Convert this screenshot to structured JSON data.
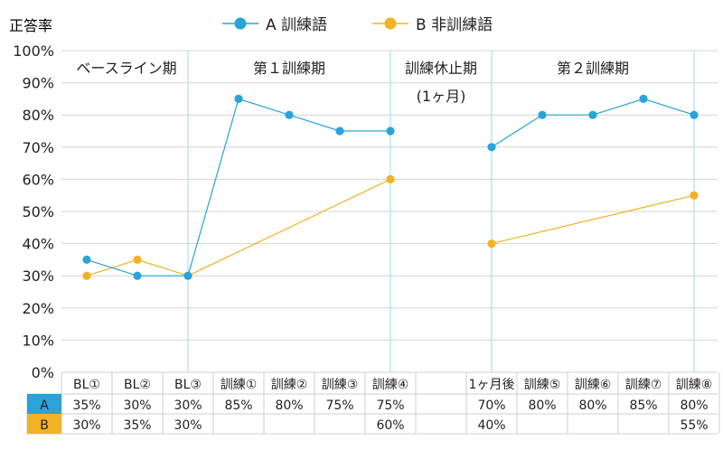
{
  "chart_data": {
    "type": "line",
    "ylabel": "正答率",
    "ylim": [
      0,
      100
    ],
    "yticks": [
      "0%",
      "10%",
      "20%",
      "30%",
      "40%",
      "50%",
      "60%",
      "70%",
      "80%",
      "90%",
      "100%"
    ],
    "categories": [
      "BL①",
      "BL②",
      "BL③",
      "訓練①",
      "訓練②",
      "訓練③",
      "訓練④",
      "",
      "1ヶ月後",
      "訓練⑤",
      "訓練⑥",
      "訓練⑦",
      "訓練⑧"
    ],
    "phases": [
      {
        "label": "ベースライン期",
        "sub": ""
      },
      {
        "label": "第１訓練期",
        "sub": ""
      },
      {
        "label": "訓練休止期",
        "sub": "(1ヶ月)"
      },
      {
        "label": "第２訓練期",
        "sub": ""
      }
    ],
    "series": [
      {
        "name": "A 訓練語",
        "key": "A",
        "color": "#29a3d9",
        "values": [
          35,
          30,
          30,
          85,
          80,
          75,
          75,
          null,
          70,
          80,
          80,
          85,
          80
        ],
        "labels": [
          "35%",
          "30%",
          "30%",
          "85%",
          "80%",
          "75%",
          "75%",
          "",
          "70%",
          "80%",
          "80%",
          "85%",
          "80%"
        ]
      },
      {
        "name": "B 非訓練語",
        "key": "B",
        "color": "#f0b323",
        "values": [
          30,
          35,
          30,
          null,
          null,
          null,
          60,
          null,
          40,
          null,
          null,
          null,
          55
        ],
        "labels": [
          "30%",
          "35%",
          "30%",
          "",
          "",
          "",
          "60%",
          "",
          "40%",
          "",
          "",
          "",
          "55%"
        ]
      }
    ],
    "grid": true,
    "legend": "top-center"
  }
}
